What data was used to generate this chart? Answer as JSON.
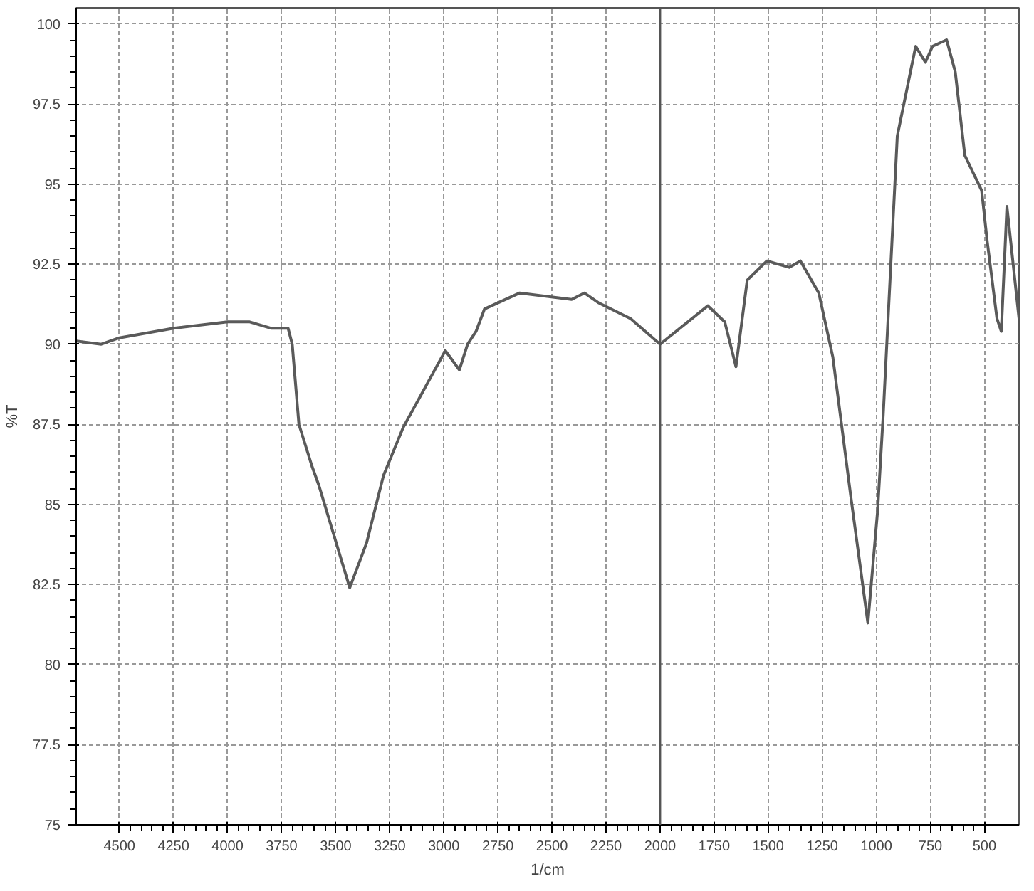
{
  "chart_data": {
    "type": "line",
    "xlabel": "1/cm",
    "ylabel": "%T",
    "x": [
      4700,
      4584,
      4500,
      4250,
      4000,
      3900,
      3800,
      3720,
      3701,
      3670,
      3610,
      3578,
      3435,
      3357,
      3279,
      3188,
      2993,
      2928,
      2890,
      2851,
      2812,
      2649,
      2409,
      2350,
      2286,
      2136,
      2000,
      1779,
      1701,
      1649,
      1597,
      1506,
      1403,
      1351,
      1266,
      1201,
      1117,
      1039,
      994,
      968,
      903,
      818,
      773,
      740,
      675,
      635,
      591,
      513,
      487,
      442,
      422,
      396,
      340
    ],
    "series": [
      {
        "color": "#5a5a5a",
        "values": [
          90.1,
          90.0,
          90.2,
          90.5,
          90.7,
          90.7,
          90.5,
          90.5,
          90.0,
          87.5,
          86.2,
          85.6,
          82.4,
          83.8,
          85.9,
          87.4,
          89.8,
          89.2,
          90.0,
          90.4,
          91.1,
          91.6,
          91.4,
          91.6,
          91.3,
          90.8,
          90.0,
          91.2,
          90.7,
          89.3,
          92.0,
          92.6,
          92.4,
          92.6,
          91.6,
          89.6,
          85.2,
          81.3,
          84.8,
          87.8,
          96.5,
          99.3,
          98.8,
          99.3,
          99.5,
          98.5,
          95.9,
          94.8,
          93.2,
          90.8,
          90.4,
          94.3,
          90.8
        ]
      }
    ],
    "xlim": [
      4700,
      340
    ],
    "ylim": [
      75,
      100.5
    ],
    "xticks": [
      4500,
      4250,
      4000,
      3750,
      3500,
      3250,
      3000,
      2750,
      2500,
      2250,
      2000,
      1750,
      1500,
      1250,
      1000,
      750,
      500
    ],
    "yticks": [
      75,
      77.5,
      80,
      82.5,
      85,
      87.5,
      90,
      92.5,
      95,
      97.5,
      100
    ],
    "ref_lines": [
      {
        "axis": "x",
        "value": 2000,
        "color": "#555555"
      }
    ],
    "grid": true,
    "marker": "none",
    "line_style": "solid"
  }
}
